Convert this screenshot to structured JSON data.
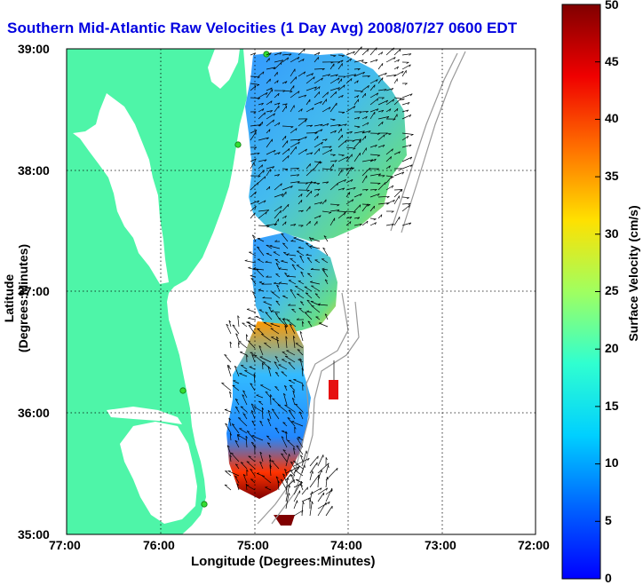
{
  "title": "Southern Mid-Atlantic Raw Velocities (1 Day Avg) 2008/07/27 0600 EDT",
  "x_axis": {
    "label": "Longitude (Degrees:Minutes)",
    "ticks": [
      "77:00",
      "76:00",
      "75:00",
      "74:00",
      "73:00",
      "72:00"
    ]
  },
  "y_axis": {
    "label": "Latitude (Degrees:Minutes)",
    "ticks": [
      "35:00",
      "36:00",
      "37:00",
      "38:00",
      "39:00"
    ]
  },
  "colorbar": {
    "label": "Surface Velocity (cm/s)",
    "ticks": [
      "0",
      "5",
      "10",
      "15",
      "20",
      "25",
      "30",
      "35",
      "40",
      "45",
      "50"
    ],
    "min": 0,
    "max": 50,
    "colormap": "jet"
  },
  "colors": {
    "land": "#4ef5a8",
    "water": "#ffffff",
    "title": "#0000e0",
    "station": "#33dd33"
  },
  "map_extent": {
    "lon_range": [
      -77,
      -72
    ],
    "lat_range": [
      35,
      39
    ],
    "grid": true
  }
}
